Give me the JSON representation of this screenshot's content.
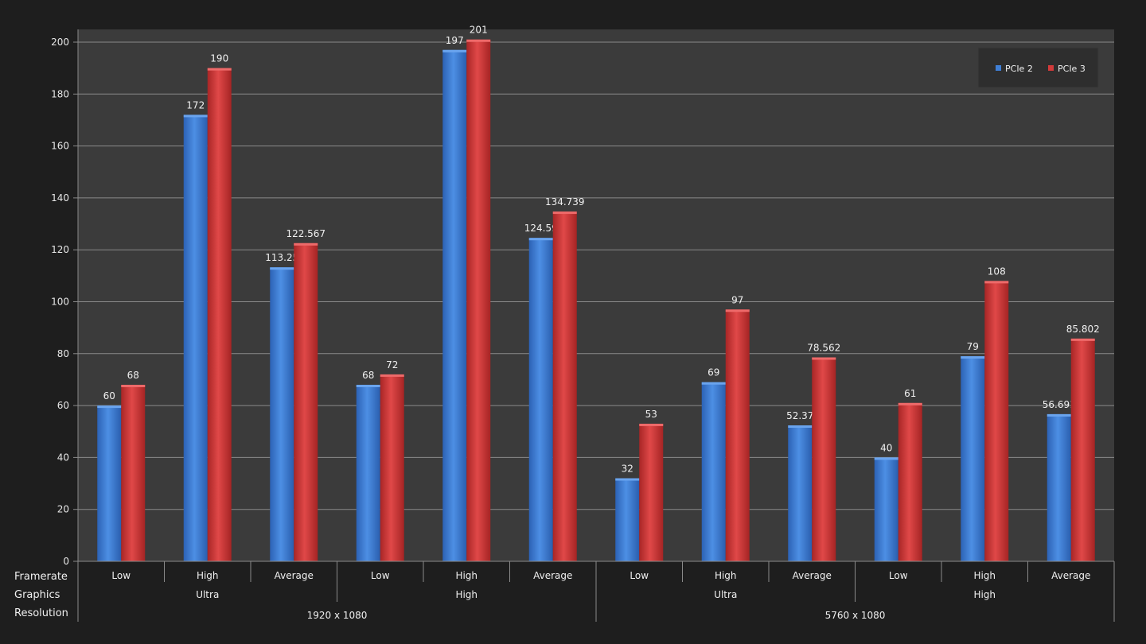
{
  "chart_data": {
    "type": "bar",
    "ylim": [
      0,
      200
    ],
    "ytick_step": 20,
    "grid": true,
    "legend_position": "top-right",
    "colors": {
      "pcie2": "#3f7fd6",
      "pcie3": "#d23a3a"
    },
    "row_labels": [
      "Framerate",
      "Graphics",
      "Resolution"
    ],
    "categories": [
      "Low",
      "High",
      "Average",
      "Low",
      "High",
      "Average",
      "Low",
      "High",
      "Average",
      "Low",
      "High",
      "Average"
    ],
    "graphics": [
      {
        "label": "Ultra",
        "span": 3
      },
      {
        "label": "High",
        "span": 3
      },
      {
        "label": "Ultra",
        "span": 3
      },
      {
        "label": "High",
        "span": 3
      }
    ],
    "resolution": [
      {
        "label": "1920 x 1080",
        "span": 6
      },
      {
        "label": "5760 x 1080",
        "span": 6
      }
    ],
    "series": [
      {
        "name": "PCIe 2",
        "values": [
          60,
          172,
          113.25,
          68,
          197,
          124.59,
          32,
          69,
          52.37,
          40,
          79,
          56.691
        ]
      },
      {
        "name": "PCIe 3",
        "values": [
          68,
          190,
          122.567,
          72,
          201,
          134.739,
          53,
          97,
          78.562,
          61,
          108,
          85.802
        ]
      }
    ]
  }
}
